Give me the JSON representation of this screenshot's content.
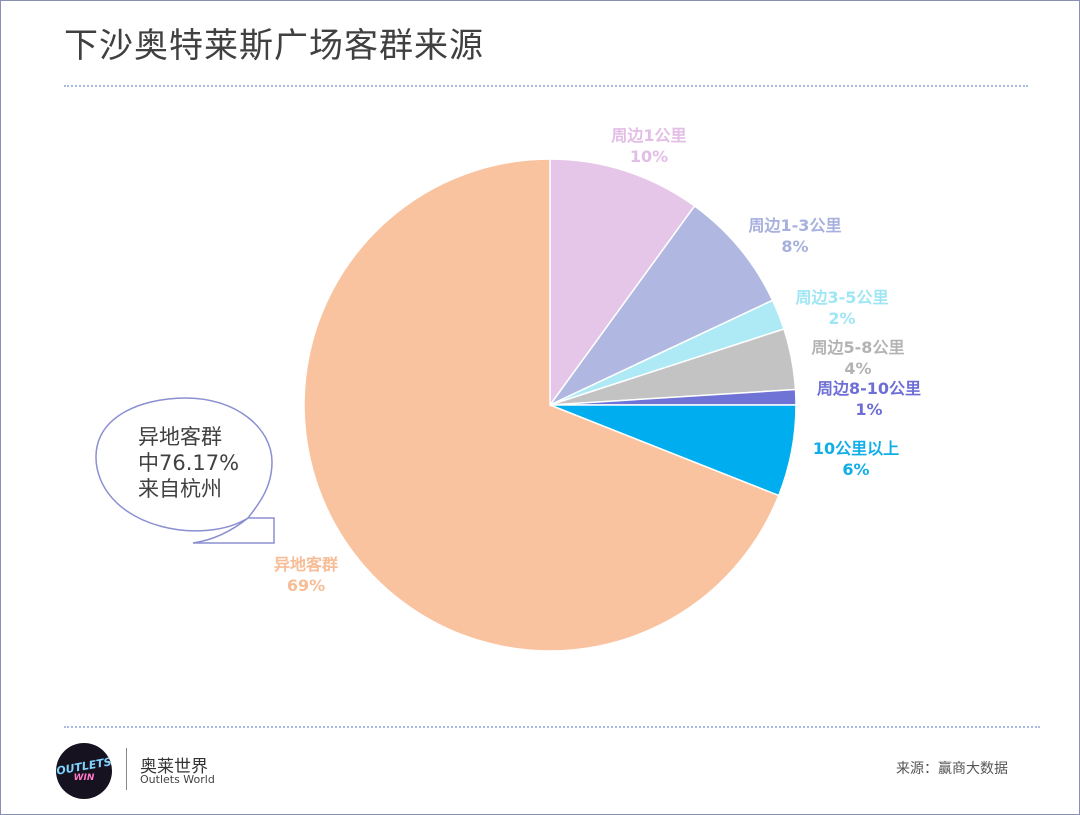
{
  "title": "下沙奥特莱斯广场客群来源",
  "callout": {
    "lines": [
      "异地客群",
      "中76.17%",
      "来自杭州"
    ],
    "border_color": "#8b8fd1"
  },
  "footer": {
    "logo_lines": [
      "OUTLETS",
      "WIN"
    ],
    "brand_cn": "奥莱世界",
    "brand_en": "Outlets World",
    "source": "来源：赢商大数据"
  },
  "chart_data": {
    "type": "pie",
    "start_angle_deg": 0,
    "direction": "clockwise",
    "slices": [
      {
        "label": "周边1公里",
        "percent_label": "10%",
        "value": 10,
        "color": "#e5c6e8",
        "label_color": "#e2bde6"
      },
      {
        "label": "周边1-3公里",
        "percent_label": "8%",
        "value": 8,
        "color": "#b0b8e2",
        "label_color": "#a7b0de"
      },
      {
        "label": "周边3-5公里",
        "percent_label": "2%",
        "value": 2,
        "color": "#aeeaf6",
        "label_color": "#9fe6f5"
      },
      {
        "label": "周边5-8公里",
        "percent_label": "4%",
        "value": 4,
        "color": "#c3c3c3",
        "label_color": "#b3b3b3"
      },
      {
        "label": "周边8-10公里",
        "percent_label": "1%",
        "value": 1,
        "color": "#7073d6",
        "label_color": "#6d6fd6"
      },
      {
        "label": "10公里以上",
        "percent_label": "6%",
        "value": 6,
        "color": "#00adee",
        "label_color": "#10aee8"
      },
      {
        "label": "异地客群",
        "percent_label": "69%",
        "value": 69,
        "color": "#f9c39f",
        "label_color": "#f7bd97"
      }
    ]
  }
}
